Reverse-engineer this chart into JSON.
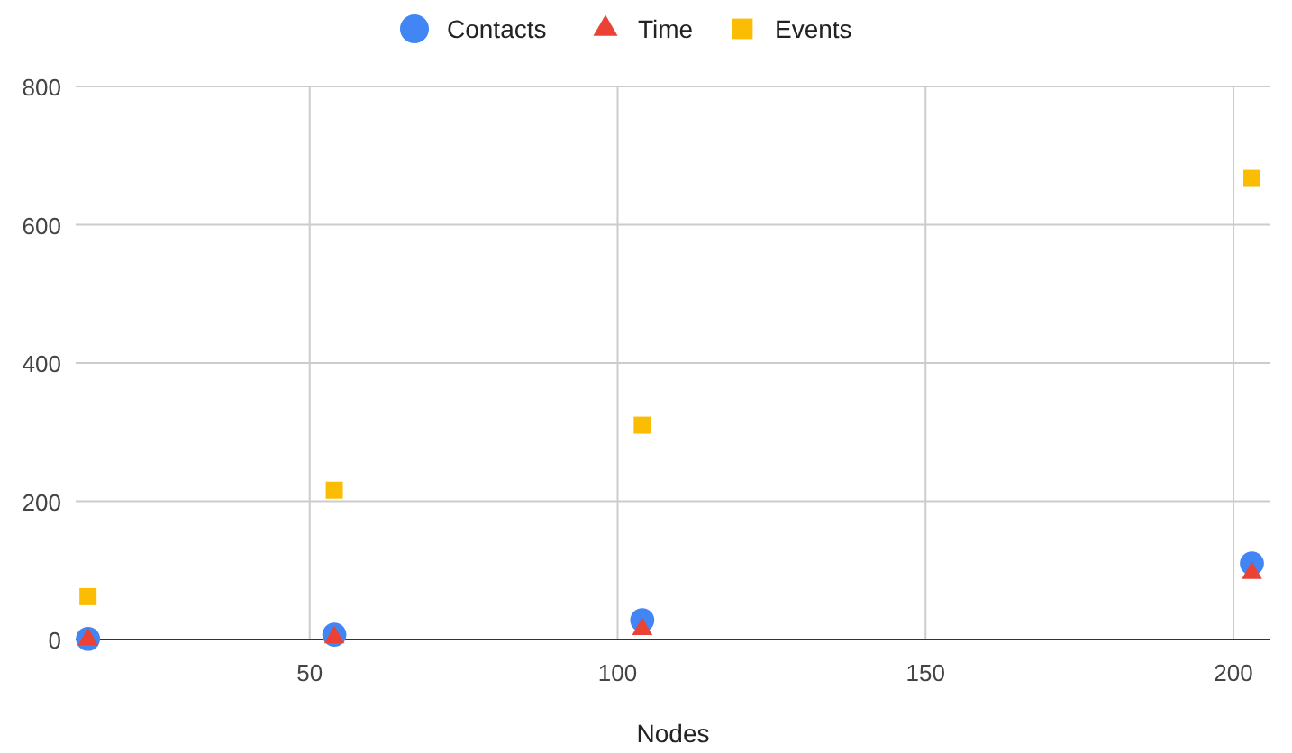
{
  "chart_data": {
    "type": "scatter",
    "xlabel": "Nodes",
    "x": [
      14,
      54,
      104,
      203
    ],
    "series": [
      {
        "name": "Contacts",
        "color": "#4285f4",
        "marker": "circle",
        "values": [
          1,
          7,
          28,
          110
        ]
      },
      {
        "name": "Time",
        "color": "#ea4335",
        "marker": "triangle",
        "values": [
          0,
          3,
          15,
          96
        ]
      },
      {
        "name": "Events",
        "color": "#fbbc04",
        "marker": "square",
        "values": [
          62,
          216,
          310,
          667
        ]
      }
    ],
    "xlim": [
      12,
      206
    ],
    "xticks": [
      50,
      100,
      150,
      200
    ],
    "ylim": [
      0,
      800
    ],
    "yticks": [
      0,
      200,
      400,
      600,
      800
    ],
    "grid": true,
    "legend": "top"
  }
}
